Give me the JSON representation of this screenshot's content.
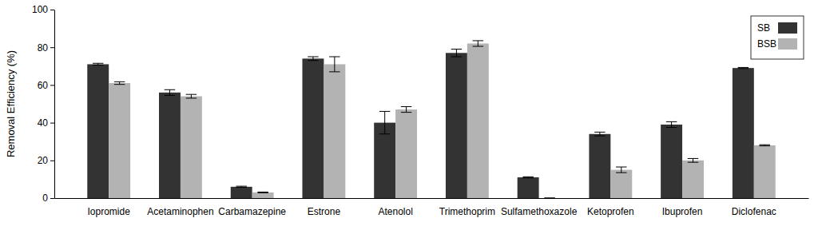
{
  "chart_data": {
    "type": "bar",
    "y_label": "Removal Efficiency (%)",
    "categories": [
      "Iopromide",
      "Acetaminophen",
      "Carbamazepine",
      "Estrone",
      "Atenolol",
      "Trimethoprim",
      "Sulfamethoxazole",
      "Ketoprofen",
      "Ibuprofen",
      "Diclofenac"
    ],
    "series": [
      {
        "name": "SB",
        "color": "#333333",
        "values": [
          71,
          56,
          6,
          74,
          40,
          77,
          11,
          34,
          39,
          69
        ],
        "errors": [
          0.5,
          1.5,
          0.3,
          1,
          6,
          2,
          0.3,
          1,
          1.5,
          0.3
        ]
      },
      {
        "name": "BSB",
        "color": "#b3b3b3",
        "values": [
          61,
          54,
          3,
          71,
          47,
          82,
          0,
          15,
          20,
          28
        ],
        "errors": [
          0.7,
          1,
          0.2,
          4,
          1.5,
          1.5,
          0,
          1.5,
          1,
          0.3
        ]
      }
    ],
    "ylim": [
      0,
      100
    ],
    "yticks": [
      0,
      20,
      40,
      60,
      80,
      100
    ],
    "grid": false,
    "legend": "top-right"
  }
}
